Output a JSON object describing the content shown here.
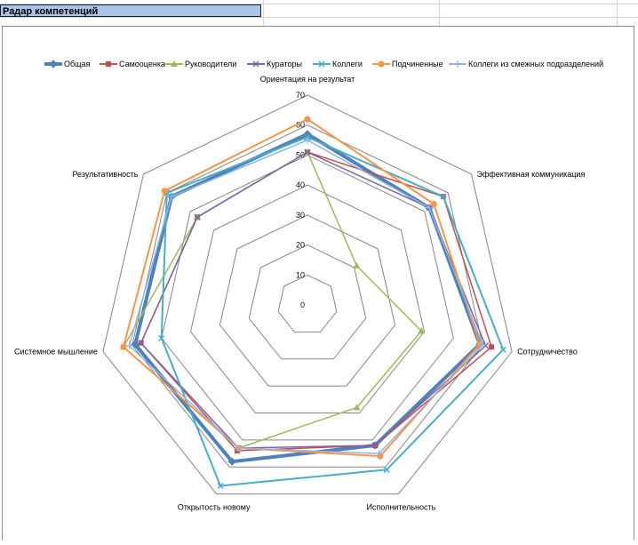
{
  "sheet": {
    "title": "Радар компетенций"
  },
  "chart_data": {
    "type": "radar",
    "title": "",
    "legend_position": "top",
    "axes": [
      "Ориентация на результат",
      "Эффективная коммуникация",
      "Сотрудничество",
      "Исполнительность",
      "Открытость новому",
      "Системное мышление",
      "Результативность"
    ],
    "rlim": [
      0,
      70
    ],
    "ticks": [
      0,
      10,
      20,
      30,
      40,
      50,
      60,
      70
    ],
    "grid": true,
    "series": [
      {
        "name": "Общая",
        "color": "#4f81bd",
        "marker": "diamond",
        "values": [
          57,
          52,
          59,
          52,
          58,
          59,
          58
        ]
      },
      {
        "name": "Самооценка",
        "color": "#c0504d",
        "marker": "square",
        "values": [
          51,
          58,
          63,
          52,
          54,
          57,
          47
        ]
      },
      {
        "name": "Руководители",
        "color": "#9bbb59",
        "marker": "triangle",
        "values": [
          51,
          21,
          39,
          38,
          53,
          63,
          47
        ]
      },
      {
        "name": "Кураторы",
        "color": "#8064a2",
        "marker": "x",
        "values": [
          51,
          52,
          61,
          52,
          53,
          57,
          47
        ]
      },
      {
        "name": "Коллеги",
        "color": "#4bacc6",
        "marker": "x",
        "values": [
          56,
          58,
          67,
          61,
          67,
          50,
          60
        ]
      },
      {
        "name": "Подчиненные",
        "color": "#f79646",
        "marker": "circle",
        "values": [
          62,
          54,
          59,
          56,
          53,
          63,
          61
        ]
      },
      {
        "name": "Коллеги из смежных подразделений",
        "color": "#8eb4e3",
        "marker": "plus",
        "values": [
          55,
          52,
          60,
          55,
          53,
          61,
          58
        ]
      }
    ]
  }
}
